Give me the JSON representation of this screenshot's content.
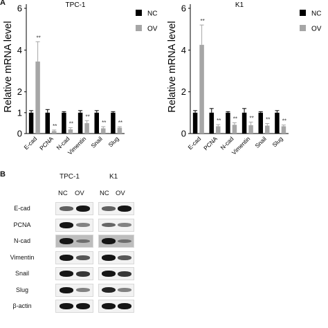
{
  "panel_a_label": "A",
  "panel_b_label": "B",
  "chart_data": [
    {
      "type": "bar",
      "title": "TPC-1",
      "ylabel": "Relative mRNA level",
      "xlabel": "",
      "ylim": [
        0,
        6
      ],
      "yticks": [
        0,
        1,
        2,
        4,
        6
      ],
      "categories": [
        "E-cad",
        "PCNA",
        "N-cad",
        "Vimentin",
        "Snail",
        "Slug"
      ],
      "series": [
        {
          "name": "NC",
          "color": "#000000",
          "values": [
            1.0,
            1.0,
            1.0,
            1.0,
            1.0,
            1.0
          ],
          "errors": [
            0.1,
            0.15,
            0.05,
            0.1,
            0.1,
            0.05
          ]
        },
        {
          "name": "OV",
          "color": "#a6a6a6",
          "values": [
            3.45,
            0.12,
            0.2,
            0.5,
            0.25,
            0.28
          ],
          "errors": [
            0.95,
            0.05,
            0.08,
            0.12,
            0.08,
            0.05
          ]
        }
      ],
      "annotations": [
        "**",
        "**",
        "**",
        "**",
        "**",
        "**"
      ],
      "legend_position": "top-right",
      "grid": false
    },
    {
      "type": "bar",
      "title": "K1",
      "ylabel": "Relative mRNA level",
      "xlabel": "",
      "ylim": [
        0,
        6
      ],
      "yticks": [
        0,
        2,
        4,
        6
      ],
      "categories": [
        "E-cad",
        "PCNA",
        "N-cad",
        "Vimentin",
        "Snail",
        "Slug"
      ],
      "series": [
        {
          "name": "NC",
          "color": "#000000",
          "values": [
            1.0,
            1.0,
            1.0,
            1.0,
            1.0,
            1.0
          ],
          "errors": [
            0.1,
            0.2,
            0.05,
            0.2,
            0.05,
            0.1
          ]
        },
        {
          "name": "OV",
          "color": "#a6a6a6",
          "values": [
            4.25,
            0.35,
            0.42,
            0.4,
            0.38,
            0.35
          ],
          "errors": [
            0.95,
            0.08,
            0.1,
            0.15,
            0.1,
            0.06
          ]
        }
      ],
      "annotations": [
        "**",
        "**",
        "**",
        "**",
        "**",
        "**"
      ],
      "legend_position": "top-right",
      "grid": false
    }
  ],
  "blot": {
    "groups": [
      "TPC-1",
      "K1"
    ],
    "lanes": [
      "NC",
      "OV",
      "NC",
      "OV"
    ],
    "rows": [
      {
        "label": "E-cad",
        "intensity": [
          0.55,
          1.0,
          0.55,
          1.0
        ],
        "dark": false
      },
      {
        "label": "PCNA",
        "intensity": [
          1.0,
          0.35,
          0.5,
          0.35
        ],
        "dark": false
      },
      {
        "label": "N-cad",
        "intensity": [
          1.0,
          0.3,
          1.0,
          0.3
        ],
        "dark": true
      },
      {
        "label": "Vimentin",
        "intensity": [
          1.0,
          0.6,
          1.0,
          0.6
        ],
        "dark": false
      },
      {
        "label": "Snail",
        "intensity": [
          1.0,
          0.8,
          1.0,
          0.8
        ],
        "dark": false
      },
      {
        "label": "Slug",
        "intensity": [
          1.0,
          0.35,
          0.9,
          0.35
        ],
        "dark": false
      },
      {
        "label": "β-actin",
        "intensity": [
          1.0,
          1.0,
          1.0,
          1.0
        ],
        "dark": false
      }
    ]
  }
}
